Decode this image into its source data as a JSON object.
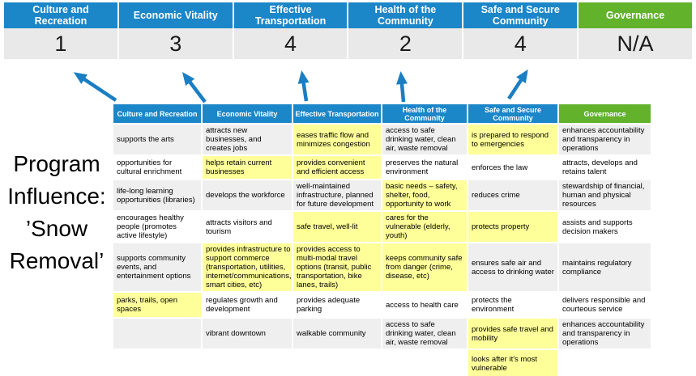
{
  "title": {
    "lines": [
      "Program",
      "Influence:",
      "’Snow",
      "Removal’"
    ]
  },
  "colors": {
    "header_blue": "#1B86C8",
    "governance_green": "#62B22C",
    "highlight_yellow": "#FFFF99",
    "band_gray": "#EFEFEF",
    "score_bg": "#E9E9E9",
    "arrow_blue": "#1B7EC3"
  },
  "scoreboard": {
    "columns": [
      {
        "label": "Culture and Recreation",
        "score": "1",
        "theme": "blue"
      },
      {
        "label": "Economic Vitality",
        "score": "3",
        "theme": "blue"
      },
      {
        "label": "Effective Transportation",
        "score": "4",
        "theme": "blue"
      },
      {
        "label": "Health of the Community",
        "score": "2",
        "theme": "blue"
      },
      {
        "label": "Safe and Secure Community",
        "score": "4",
        "theme": "blue"
      },
      {
        "label": "Governance",
        "score": "N/A",
        "theme": "green"
      }
    ]
  },
  "matrix": {
    "columns": [
      {
        "name": "Culture and Recreation",
        "theme": "blue",
        "cells": [
          {
            "text": "supports the arts",
            "highlight": false
          },
          {
            "text": "opportunities for cultural enrichment",
            "highlight": false
          },
          {
            "text": "life-long learning opportunities (libraries)",
            "highlight": false
          },
          {
            "text": "encourages healthy people (promotes active lifestyle)",
            "highlight": false
          },
          {
            "text": "supports community events, and entertainment options",
            "highlight": false
          },
          {
            "text": "parks, trails, open spaces",
            "highlight": true
          },
          {
            "text": "",
            "highlight": false
          },
          {
            "text": "",
            "highlight": false
          }
        ]
      },
      {
        "name": "Economic Vitality",
        "theme": "blue",
        "cells": [
          {
            "text": "attracts new businesses, and creates jobs",
            "highlight": false
          },
          {
            "text": "helps retain current businesses",
            "highlight": true
          },
          {
            "text": "develops the workforce",
            "highlight": false
          },
          {
            "text": "attracts visitors and tourism",
            "highlight": false
          },
          {
            "text": "provides infrastructure to support commerce (transportation, utilities, internet/communications, smart cities, etc)",
            "highlight": true
          },
          {
            "text": "regulates growth and development",
            "highlight": false
          },
          {
            "text": "vibrant downtown",
            "highlight": false
          },
          {
            "text": "",
            "highlight": false
          }
        ]
      },
      {
        "name": "Effective Transportation",
        "theme": "blue",
        "cells": [
          {
            "text": "eases traffic flow and minimizes congestion",
            "highlight": true
          },
          {
            "text": "provides convenient and efficient access",
            "highlight": true
          },
          {
            "text": "well-maintained infrastructure, planned for future development",
            "highlight": false
          },
          {
            "text": "safe travel, well-lit",
            "highlight": true
          },
          {
            "text": "provides access to multi-modal travel options (transit, public transportation, bike lanes, trails)",
            "highlight": true
          },
          {
            "text": "provides adequate parking",
            "highlight": false
          },
          {
            "text": "walkable community",
            "highlight": false
          },
          {
            "text": "",
            "highlight": false
          }
        ]
      },
      {
        "name": "Health of the Community",
        "theme": "blue",
        "cells": [
          {
            "text": "access to safe drinking water, clean air, waste removal",
            "highlight": false
          },
          {
            "text": "preserves the natural environment",
            "highlight": false
          },
          {
            "text": "basic needs – safety, shelter, food, opportunity to work",
            "highlight": true
          },
          {
            "text": "cares for the vulnerable (elderly, youth)",
            "highlight": true
          },
          {
            "text": "keeps community safe from danger (crime, disease, etc)",
            "highlight": true
          },
          {
            "text": "access to health care",
            "highlight": false
          },
          {
            "text": "access to safe drinking water, clean air, waste removal",
            "highlight": false
          },
          {
            "text": "",
            "highlight": false
          }
        ]
      },
      {
        "name": "Safe and Secure Community",
        "theme": "blue",
        "cells": [
          {
            "text": "is prepared to respond to emergencies",
            "highlight": true
          },
          {
            "text": "enforces the law",
            "highlight": false
          },
          {
            "text": "reduces crime",
            "highlight": false
          },
          {
            "text": "protects property",
            "highlight": true
          },
          {
            "text": "ensures safe air and access to drinking water",
            "highlight": false
          },
          {
            "text": "protects the environment",
            "highlight": false
          },
          {
            "text": "provides safe travel and mobility",
            "highlight": true
          },
          {
            "text": "looks after it's most vulnerable",
            "highlight": true
          }
        ]
      },
      {
        "name": "Governance",
        "theme": "green",
        "cells": [
          {
            "text": "enhances accountability and transparency in operations",
            "highlight": false
          },
          {
            "text": "attracts, develops and retains talent",
            "highlight": false
          },
          {
            "text": "stewardship of financial, human and physical resources",
            "highlight": false
          },
          {
            "text": "assists and supports decision makers",
            "highlight": false
          },
          {
            "text": "maintains regulatory compliance",
            "highlight": false
          },
          {
            "text": "delivers responsible and courteous service",
            "highlight": false
          },
          {
            "text": "enhances accountability and transparency in operations",
            "highlight": false
          },
          {
            "text": "",
            "highlight": false
          }
        ]
      }
    ]
  }
}
